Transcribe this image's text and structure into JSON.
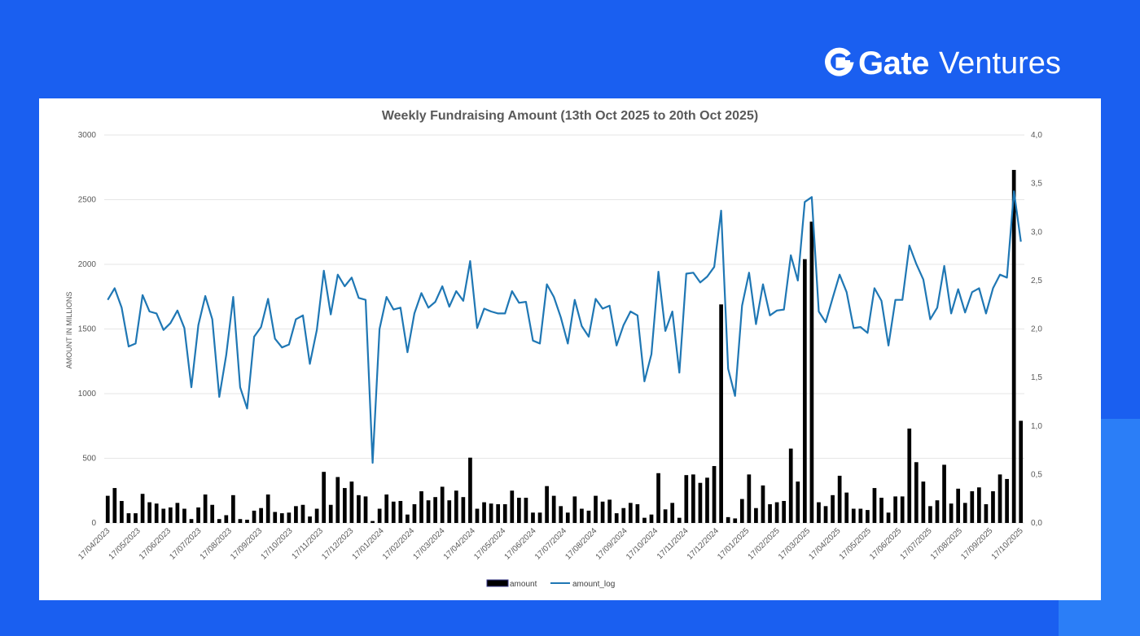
{
  "brand": {
    "name_bold": "Gate",
    "name_light": "Ventures",
    "logo_icon": "gate-g-icon",
    "color": "#ffffff"
  },
  "colors": {
    "background": "#1a5ff0",
    "bar": "#000000",
    "line": "#1f77b4",
    "grid": "#e6e6e6"
  },
  "chart_data": {
    "type": "bar",
    "title": "Weekly Fundraising Amount (13th Oct 2025 to 20th Oct 2025)",
    "ylabel": "AMOUNT IN MILLIONS",
    "ylim": [
      0,
      3000
    ],
    "y2lim": [
      0,
      4
    ],
    "yticks": [
      "0",
      "500",
      "1000",
      "1500",
      "2000",
      "2500",
      "3000"
    ],
    "y2ticks": [
      "0,0",
      "0,5",
      "1,0",
      "1,5",
      "2,0",
      "2,5",
      "3,0",
      "3,5",
      "4,0"
    ],
    "grid": true,
    "legend_position": "bottom",
    "x_tick_labels": [
      "17/04/2023",
      "17/05/2023",
      "17/06/2023",
      "17/07/2023",
      "17/08/2023",
      "17/09/2023",
      "17/10/2023",
      "17/11/2023",
      "17/12/2023",
      "17/01/2024",
      "17/02/2024",
      "17/03/2024",
      "17/04/2024",
      "17/05/2024",
      "17/06/2024",
      "17/07/2024",
      "17/08/2024",
      "17/09/2024",
      "17/10/2024",
      "17/11/2024",
      "17/12/2024",
      "17/01/2025",
      "17/02/2025",
      "17/03/2025",
      "17/04/2025",
      "17/05/2025",
      "17/06/2025",
      "17/07/2025",
      "17/08/2025",
      "17/09/2025",
      "17/10/2025"
    ],
    "series": [
      {
        "name": "amount",
        "type": "bar",
        "axis": "left",
        "values": [
          210,
          270,
          170,
          75,
          75,
          225,
          160,
          150,
          110,
          120,
          155,
          110,
          30,
          120,
          220,
          140,
          30,
          60,
          215,
          30,
          25,
          95,
          115,
          220,
          85,
          75,
          80,
          130,
          140,
          50,
          110,
          395,
          140,
          355,
          270,
          320,
          215,
          205,
          15,
          110,
          220,
          165,
          170,
          65,
          145,
          245,
          175,
          200,
          280,
          175,
          250,
          200,
          505,
          110,
          160,
          150,
          145,
          145,
          250,
          195,
          195,
          80,
          80,
          285,
          210,
          130,
          80,
          205,
          110,
          95,
          210,
          165,
          180,
          75,
          115,
          155,
          145,
          40,
          65,
          385,
          105,
          155,
          40,
          370,
          375,
          310,
          350,
          440,
          1690,
          45,
          35,
          185,
          375,
          115,
          290,
          145,
          160,
          170,
          575,
          320,
          2040,
          2330,
          160,
          130,
          215,
          365,
          235,
          110,
          110,
          100,
          270,
          195,
          80,
          205,
          205,
          730,
          470,
          320,
          130,
          175,
          450,
          150,
          265,
          155,
          245,
          275,
          145,
          245,
          375,
          340,
          2730,
          790
        ]
      },
      {
        "name": "amount_log",
        "type": "line",
        "axis": "right",
        "values": [
          2.3,
          2.42,
          2.22,
          1.82,
          1.85,
          2.35,
          2.18,
          2.16,
          1.99,
          2.06,
          2.19,
          2.01,
          1.4,
          2.04,
          2.34,
          2.1,
          1.3,
          1.73,
          2.33,
          1.4,
          1.18,
          1.92,
          2.02,
          2.31,
          1.9,
          1.81,
          1.84,
          2.1,
          2.14,
          1.64,
          1.99,
          2.6,
          2.15,
          2.56,
          2.44,
          2.53,
          2.32,
          2.3,
          0.62,
          2.0,
          2.33,
          2.2,
          2.22,
          1.76,
          2.16,
          2.37,
          2.22,
          2.28,
          2.44,
          2.23,
          2.39,
          2.29,
          2.7,
          2.01,
          2.21,
          2.18,
          2.16,
          2.16,
          2.39,
          2.27,
          2.28,
          1.88,
          1.85,
          2.46,
          2.33,
          2.12,
          1.85,
          2.3,
          2.03,
          1.92,
          2.31,
          2.21,
          2.24,
          1.83,
          2.04,
          2.18,
          2.14,
          1.46,
          1.74,
          2.59,
          1.98,
          2.18,
          1.55,
          2.57,
          2.58,
          2.48,
          2.54,
          2.64,
          3.22,
          1.59,
          1.31,
          2.24,
          2.58,
          2.05,
          2.46,
          2.14,
          2.19,
          2.2,
          2.76,
          2.5,
          3.31,
          3.36,
          2.18,
          2.07,
          2.32,
          2.56,
          2.38,
          2.01,
          2.02,
          1.96,
          2.42,
          2.29,
          1.83,
          2.3,
          2.3,
          2.86,
          2.67,
          2.51,
          2.1,
          2.22,
          2.65,
          2.16,
          2.41,
          2.17,
          2.38,
          2.42,
          2.16,
          2.42,
          2.56,
          2.53,
          3.42,
          2.9
        ]
      }
    ]
  }
}
